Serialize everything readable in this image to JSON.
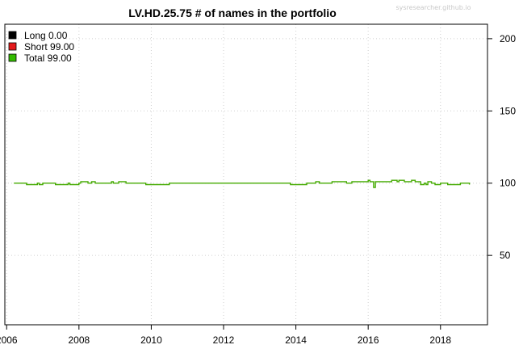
{
  "watermark": "sysresearcher.github.io",
  "chart_data": {
    "type": "line",
    "title": "LV.HD.25.75 # of names in the portfolio",
    "xlabel": "",
    "ylabel": "",
    "xlim": [
      2005.95,
      2019.3
    ],
    "ylim": [
      2,
      210
    ],
    "x_ticks": [
      2006,
      2008,
      2010,
      2012,
      2014,
      2016,
      2018
    ],
    "y_ticks": [
      50,
      100,
      150,
      200
    ],
    "x_tick_labels": [
      "2006",
      "2008",
      "2010",
      "2012",
      "2014",
      "2016",
      "2018"
    ],
    "y_tick_labels": [
      "50",
      "100",
      "150",
      "200"
    ],
    "y_axis_side": "right",
    "grid": true,
    "legend": {
      "placement": "top-left",
      "entries": [
        {
          "label": "Long  0.00",
          "color": "#000000"
        },
        {
          "label": "Short 99.00",
          "color": "#e41a1c"
        },
        {
          "label": "Total 99.00",
          "color": "#33bb00"
        }
      ]
    },
    "series": [
      {
        "name": "Total",
        "color": "#44aa00",
        "x": [
          2006.2,
          2006.5,
          2006.55,
          2006.85,
          2006.9,
          2007.0,
          2007.3,
          2007.35,
          2007.7,
          2007.75,
          2008.0,
          2008.05,
          2008.25,
          2008.35,
          2008.45,
          2008.5,
          2008.9,
          2008.95,
          2009.1,
          2009.3,
          2009.8,
          2009.85,
          2010.5,
          2011.5,
          2012.5,
          2013.0,
          2013.8,
          2013.85,
          2014.3,
          2014.5,
          2014.55,
          2014.65,
          2015.0,
          2015.3,
          2015.4,
          2015.55,
          2015.9,
          2016.0,
          2016.05,
          2016.15,
          2016.2,
          2016.6,
          2016.65,
          2016.8,
          2016.85,
          2017.0,
          2017.2,
          2017.3,
          2017.45,
          2017.55,
          2017.6,
          2017.65,
          2017.75,
          2017.85,
          2018.0,
          2018.1,
          2018.2,
          2018.5,
          2018.55,
          2018.7,
          2018.8
        ],
        "values": [
          100,
          100,
          99,
          100,
          99,
          100,
          100,
          99,
          100,
          99,
          100,
          101,
          100,
          101,
          100,
          100,
          101,
          100,
          101,
          100,
          100,
          99,
          100,
          100,
          100,
          100,
          100,
          99,
          100,
          100,
          101,
          100,
          101,
          101,
          100,
          101,
          101,
          102,
          101,
          97,
          101,
          101,
          102,
          101,
          102,
          101,
          102,
          101,
          99,
          100,
          99,
          101,
          100,
          99,
          100,
          100,
          99,
          99,
          100,
          100,
          99
        ]
      }
    ]
  }
}
